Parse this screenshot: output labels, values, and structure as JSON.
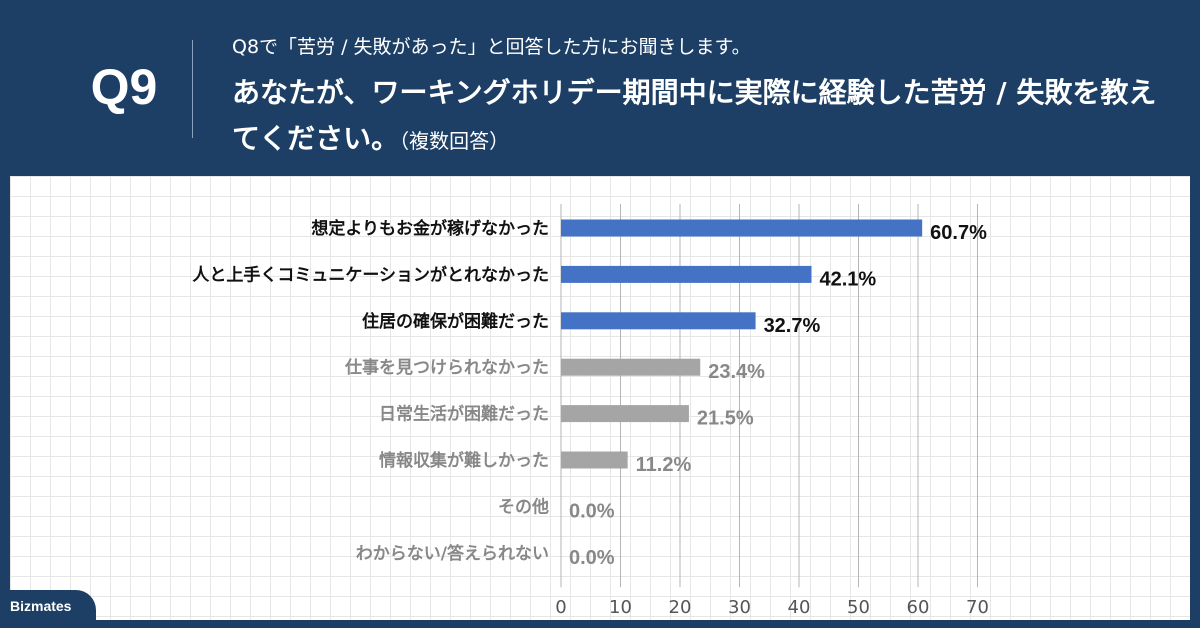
{
  "header": {
    "question_number": "Q9",
    "sub_question": "Q8で「苦労 / 失敗があった」と回答した方にお聞きします。",
    "main_question": "あなたが、ワーキングホリデー期間中に実際に経験した苦労 / 失敗を教えてください。",
    "note": "（複数回答）"
  },
  "brand": {
    "logo_text": "Bizmates"
  },
  "colors": {
    "highlight": "#4472c4",
    "other": "#a5a5a5",
    "header_bg": "#1d3f66"
  },
  "chart_data": {
    "type": "bar",
    "orientation": "horizontal",
    "categories": [
      "想定よりもお金が稼げなかった",
      "人と上手くコミュニケーションがとれなかった",
      "住居の確保が困難だった",
      "仕事を見つけられなかった",
      "日常生活が困難だった",
      "情報収集が難しかった",
      "その他",
      "わからない/答えられない"
    ],
    "values": [
      60.7,
      42.1,
      32.7,
      23.4,
      21.5,
      11.2,
      0.0,
      0.0
    ],
    "value_labels": [
      "60.7%",
      "42.1%",
      "32.7%",
      "23.4%",
      "21.5%",
      "11.2%",
      "0.0%",
      "0.0%"
    ],
    "highlighted": [
      true,
      true,
      true,
      false,
      false,
      false,
      false,
      false
    ],
    "xlim": [
      0,
      70
    ],
    "xticks": [
      0,
      10,
      20,
      30,
      40,
      50,
      60,
      70
    ],
    "grid": true
  }
}
